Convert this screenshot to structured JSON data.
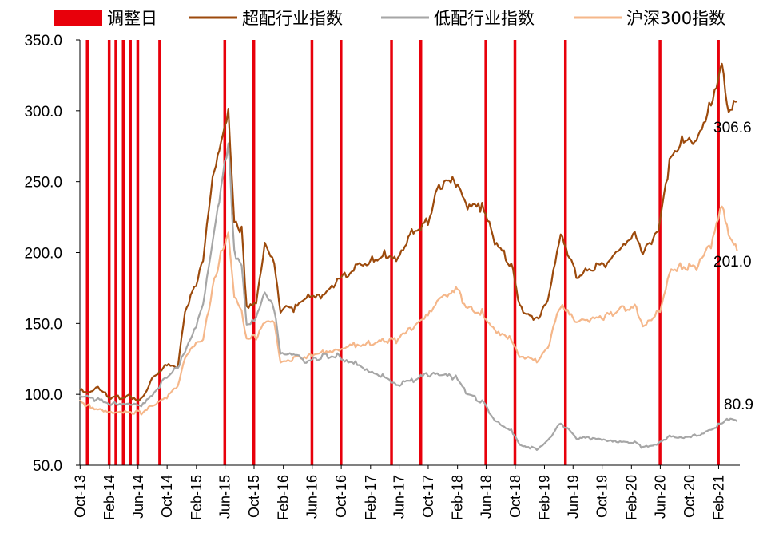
{
  "chart_data": {
    "type": "line",
    "title": "",
    "xlabel": "",
    "ylabel": "",
    "ylim": [
      50,
      350
    ],
    "yticks": [
      "50.0",
      "100.0",
      "150.0",
      "200.0",
      "250.0",
      "300.0",
      "350.0"
    ],
    "xticks": [
      "Oct-13",
      "Feb-14",
      "Jun-14",
      "Oct-14",
      "Feb-15",
      "Jun-15",
      "Oct-15",
      "Feb-16",
      "Jun-16",
      "Oct-16",
      "Feb-17",
      "Jun-17",
      "Oct-17",
      "Feb-18",
      "Jun-18",
      "Oct-18",
      "Feb-19",
      "Jun-19",
      "Oct-19",
      "Feb-20",
      "Jun-20",
      "Oct-20",
      "Feb-21"
    ],
    "legend_position": "top",
    "legend": [
      {
        "label": "调整日",
        "type": "bar",
        "color": "#e8000b"
      },
      {
        "label": "超配行业指数",
        "type": "line",
        "color": "#9c4a0c"
      },
      {
        "label": "低配行业指数",
        "type": "line",
        "color": "#a6a6a6"
      },
      {
        "label": "沪深300指数",
        "type": "line",
        "color": "#f5b78a"
      }
    ],
    "adjustment_dates": [
      "2013-10-31",
      "2014-01-31",
      "2014-02-28",
      "2014-03-31",
      "2014-04-30",
      "2014-05-31",
      "2014-08-31",
      "2015-05-31",
      "2015-09-30",
      "2016-05-31",
      "2016-09-30",
      "2017-04-30",
      "2017-08-31",
      "2018-05-31",
      "2018-09-30",
      "2019-04-30",
      "2020-05-31",
      "2021-01-31"
    ],
    "series": [
      {
        "name": "超配行业指数",
        "color": "#9c4a0c",
        "end_label": "306.6",
        "points": [
          [
            "2013-09-30",
            103
          ],
          [
            "2013-10-31",
            100
          ],
          [
            "2013-12-15",
            104
          ],
          [
            "2014-02-15",
            97
          ],
          [
            "2014-04-15",
            99
          ],
          [
            "2014-06-15",
            96
          ],
          [
            "2014-07-31",
            112
          ],
          [
            "2014-09-30",
            122
          ],
          [
            "2014-11-15",
            120
          ],
          [
            "2014-12-15",
            160
          ],
          [
            "2015-01-31",
            178
          ],
          [
            "2015-03-01",
            195
          ],
          [
            "2015-04-10",
            250
          ],
          [
            "2015-05-15",
            275
          ],
          [
            "2015-06-15",
            298
          ],
          [
            "2015-07-10",
            220
          ],
          [
            "2015-08-10",
            215
          ],
          [
            "2015-08-31",
            163
          ],
          [
            "2015-10-10",
            165
          ],
          [
            "2015-11-15",
            207
          ],
          [
            "2015-12-25",
            195
          ],
          [
            "2016-01-20",
            160
          ],
          [
            "2016-03-15",
            160
          ],
          [
            "2016-05-15",
            168
          ],
          [
            "2016-07-15",
            168
          ],
          [
            "2016-09-15",
            180
          ],
          [
            "2016-11-30",
            190
          ],
          [
            "2017-01-31",
            194
          ],
          [
            "2017-03-31",
            200
          ],
          [
            "2017-05-20",
            197
          ],
          [
            "2017-07-31",
            215
          ],
          [
            "2017-09-30",
            222
          ],
          [
            "2017-11-15",
            248
          ],
          [
            "2018-01-25",
            250
          ],
          [
            "2018-03-15",
            230
          ],
          [
            "2018-05-15",
            232
          ],
          [
            "2018-07-15",
            205
          ],
          [
            "2018-09-15",
            192
          ],
          [
            "2018-10-20",
            162
          ],
          [
            "2018-12-31",
            153
          ],
          [
            "2019-02-15",
            168
          ],
          [
            "2019-04-10",
            215
          ],
          [
            "2019-06-15",
            183
          ],
          [
            "2019-08-15",
            188
          ],
          [
            "2019-10-15",
            192
          ],
          [
            "2019-12-15",
            200
          ],
          [
            "2020-02-15",
            212
          ],
          [
            "2020-03-20",
            198
          ],
          [
            "2020-05-31",
            220
          ],
          [
            "2020-07-10",
            265
          ],
          [
            "2020-08-31",
            282
          ],
          [
            "2020-10-31",
            280
          ],
          [
            "2020-12-31",
            305
          ],
          [
            "2021-02-15",
            335
          ],
          [
            "2021-03-15",
            300
          ],
          [
            "2021-04-20",
            306.6
          ]
        ]
      },
      {
        "name": "低配行业指数",
        "color": "#a6a6a6",
        "end_label": "80.9",
        "points": [
          [
            "2013-09-30",
            98
          ],
          [
            "2013-10-31",
            98
          ],
          [
            "2013-12-15",
            96
          ],
          [
            "2014-02-15",
            93
          ],
          [
            "2014-04-15",
            94
          ],
          [
            "2014-06-15",
            93
          ],
          [
            "2014-07-31",
            100
          ],
          [
            "2014-09-30",
            112
          ],
          [
            "2014-11-15",
            120
          ],
          [
            "2014-12-15",
            130
          ],
          [
            "2015-01-31",
            147
          ],
          [
            "2015-03-01",
            163
          ],
          [
            "2015-04-10",
            205
          ],
          [
            "2015-05-15",
            245
          ],
          [
            "2015-06-15",
            276
          ],
          [
            "2015-07-10",
            200
          ],
          [
            "2015-08-10",
            192
          ],
          [
            "2015-08-31",
            150
          ],
          [
            "2015-10-10",
            155
          ],
          [
            "2015-11-15",
            172
          ],
          [
            "2015-12-25",
            160
          ],
          [
            "2016-01-20",
            128
          ],
          [
            "2016-03-15",
            127
          ],
          [
            "2016-05-15",
            123
          ],
          [
            "2016-07-15",
            127
          ],
          [
            "2016-09-15",
            127
          ],
          [
            "2016-11-30",
            122
          ],
          [
            "2017-01-31",
            117
          ],
          [
            "2017-03-31",
            113
          ],
          [
            "2017-05-20",
            107
          ],
          [
            "2017-07-31",
            110
          ],
          [
            "2017-09-30",
            114
          ],
          [
            "2017-11-15",
            113
          ],
          [
            "2018-01-25",
            112
          ],
          [
            "2018-03-15",
            100
          ],
          [
            "2018-05-15",
            95
          ],
          [
            "2018-07-15",
            80
          ],
          [
            "2018-09-15",
            75
          ],
          [
            "2018-10-20",
            65
          ],
          [
            "2018-12-31",
            61
          ],
          [
            "2019-02-15",
            68
          ],
          [
            "2019-04-10",
            80
          ],
          [
            "2019-06-15",
            69
          ],
          [
            "2019-08-15",
            69
          ],
          [
            "2019-10-15",
            67
          ],
          [
            "2019-12-15",
            66
          ],
          [
            "2020-02-15",
            66
          ],
          [
            "2020-03-20",
            62
          ],
          [
            "2020-05-31",
            66
          ],
          [
            "2020-07-10",
            71
          ],
          [
            "2020-08-31",
            70
          ],
          [
            "2020-10-31",
            71
          ],
          [
            "2020-12-31",
            75
          ],
          [
            "2021-02-15",
            80
          ],
          [
            "2021-03-15",
            82
          ],
          [
            "2021-04-20",
            80.9
          ]
        ]
      },
      {
        "name": "沪深300指数",
        "color": "#f5b78a",
        "end_label": "201.0",
        "points": [
          [
            "2013-09-30",
            95
          ],
          [
            "2013-10-31",
            92
          ],
          [
            "2013-12-15",
            90
          ],
          [
            "2014-02-15",
            88
          ],
          [
            "2014-04-15",
            88
          ],
          [
            "2014-06-15",
            87
          ],
          [
            "2014-07-31",
            92
          ],
          [
            "2014-09-30",
            98
          ],
          [
            "2014-11-15",
            105
          ],
          [
            "2014-12-15",
            125
          ],
          [
            "2015-01-31",
            135
          ],
          [
            "2015-03-01",
            138
          ],
          [
            "2015-04-10",
            175
          ],
          [
            "2015-05-15",
            200
          ],
          [
            "2015-06-15",
            215
          ],
          [
            "2015-07-10",
            170
          ],
          [
            "2015-08-10",
            160
          ],
          [
            "2015-08-31",
            140
          ],
          [
            "2015-10-10",
            140
          ],
          [
            "2015-11-15",
            150
          ],
          [
            "2015-12-25",
            150
          ],
          [
            "2016-01-20",
            122
          ],
          [
            "2016-03-15",
            125
          ],
          [
            "2016-05-15",
            127
          ],
          [
            "2016-07-15",
            130
          ],
          [
            "2016-09-15",
            132
          ],
          [
            "2016-11-30",
            135
          ],
          [
            "2017-01-31",
            136
          ],
          [
            "2017-03-31",
            138
          ],
          [
            "2017-05-20",
            138
          ],
          [
            "2017-07-31",
            147
          ],
          [
            "2017-09-30",
            155
          ],
          [
            "2017-11-15",
            165
          ],
          [
            "2018-01-25",
            175
          ],
          [
            "2018-03-15",
            160
          ],
          [
            "2018-05-15",
            158
          ],
          [
            "2018-07-15",
            145
          ],
          [
            "2018-09-15",
            140
          ],
          [
            "2018-10-20",
            128
          ],
          [
            "2018-12-31",
            123
          ],
          [
            "2019-02-15",
            133
          ],
          [
            "2019-04-10",
            163
          ],
          [
            "2019-06-15",
            150
          ],
          [
            "2019-08-15",
            152
          ],
          [
            "2019-10-15",
            155
          ],
          [
            "2019-12-15",
            160
          ],
          [
            "2020-02-15",
            162
          ],
          [
            "2020-03-20",
            150
          ],
          [
            "2020-05-31",
            158
          ],
          [
            "2020-07-10",
            188
          ],
          [
            "2020-08-31",
            190
          ],
          [
            "2020-10-31",
            190
          ],
          [
            "2020-12-31",
            205
          ],
          [
            "2021-02-15",
            232
          ],
          [
            "2021-03-15",
            212
          ],
          [
            "2021-04-20",
            201.0
          ]
        ]
      }
    ]
  }
}
